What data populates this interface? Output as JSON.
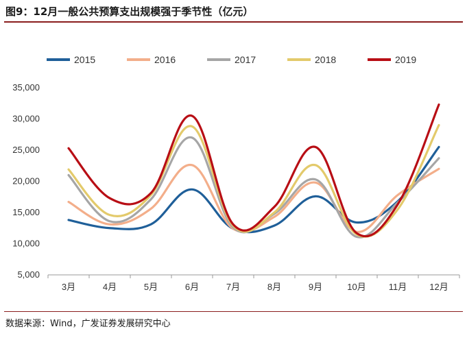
{
  "title": "图9：12月一般公共预算支出规模强于季节性（亿元）",
  "source": "数据来源：Wind，广发证券发展研究中心",
  "chart_data": {
    "type": "line",
    "categories": [
      "3月",
      "4月",
      "5月",
      "6月",
      "7月",
      "8月",
      "9月",
      "10月",
      "11月",
      "12月"
    ],
    "ylim": [
      5000,
      35000
    ],
    "yticks": [
      5000,
      10000,
      15000,
      20000,
      25000,
      30000,
      35000
    ],
    "ytick_labels": [
      "5,000",
      "10,000",
      "15,000",
      "20,000",
      "25,000",
      "30,000",
      "35,000"
    ],
    "legend_position": "top",
    "series": [
      {
        "name": "2015",
        "color": "#1f5f99",
        "values": [
          13800,
          12500,
          13100,
          18700,
          12400,
          12900,
          17600,
          13400,
          16800,
          25500
        ]
      },
      {
        "name": "2016",
        "color": "#f3ae8a",
        "values": [
          16700,
          13100,
          15600,
          22600,
          12400,
          14300,
          19800,
          11900,
          17800,
          22000
        ]
      },
      {
        "name": "2017",
        "color": "#a6a6a6",
        "values": [
          21000,
          13600,
          17100,
          27000,
          12600,
          14800,
          20300,
          11100,
          16600,
          23700
        ]
      },
      {
        "name": "2018",
        "color": "#e3ca6b",
        "values": [
          21900,
          14600,
          17800,
          28800,
          12900,
          15000,
          22600,
          11500,
          15500,
          29000
        ]
      },
      {
        "name": "2019",
        "color": "#b80e15",
        "values": [
          25300,
          17300,
          18100,
          30500,
          13100,
          15900,
          25500,
          11700,
          16300,
          32300
        ]
      }
    ]
  }
}
